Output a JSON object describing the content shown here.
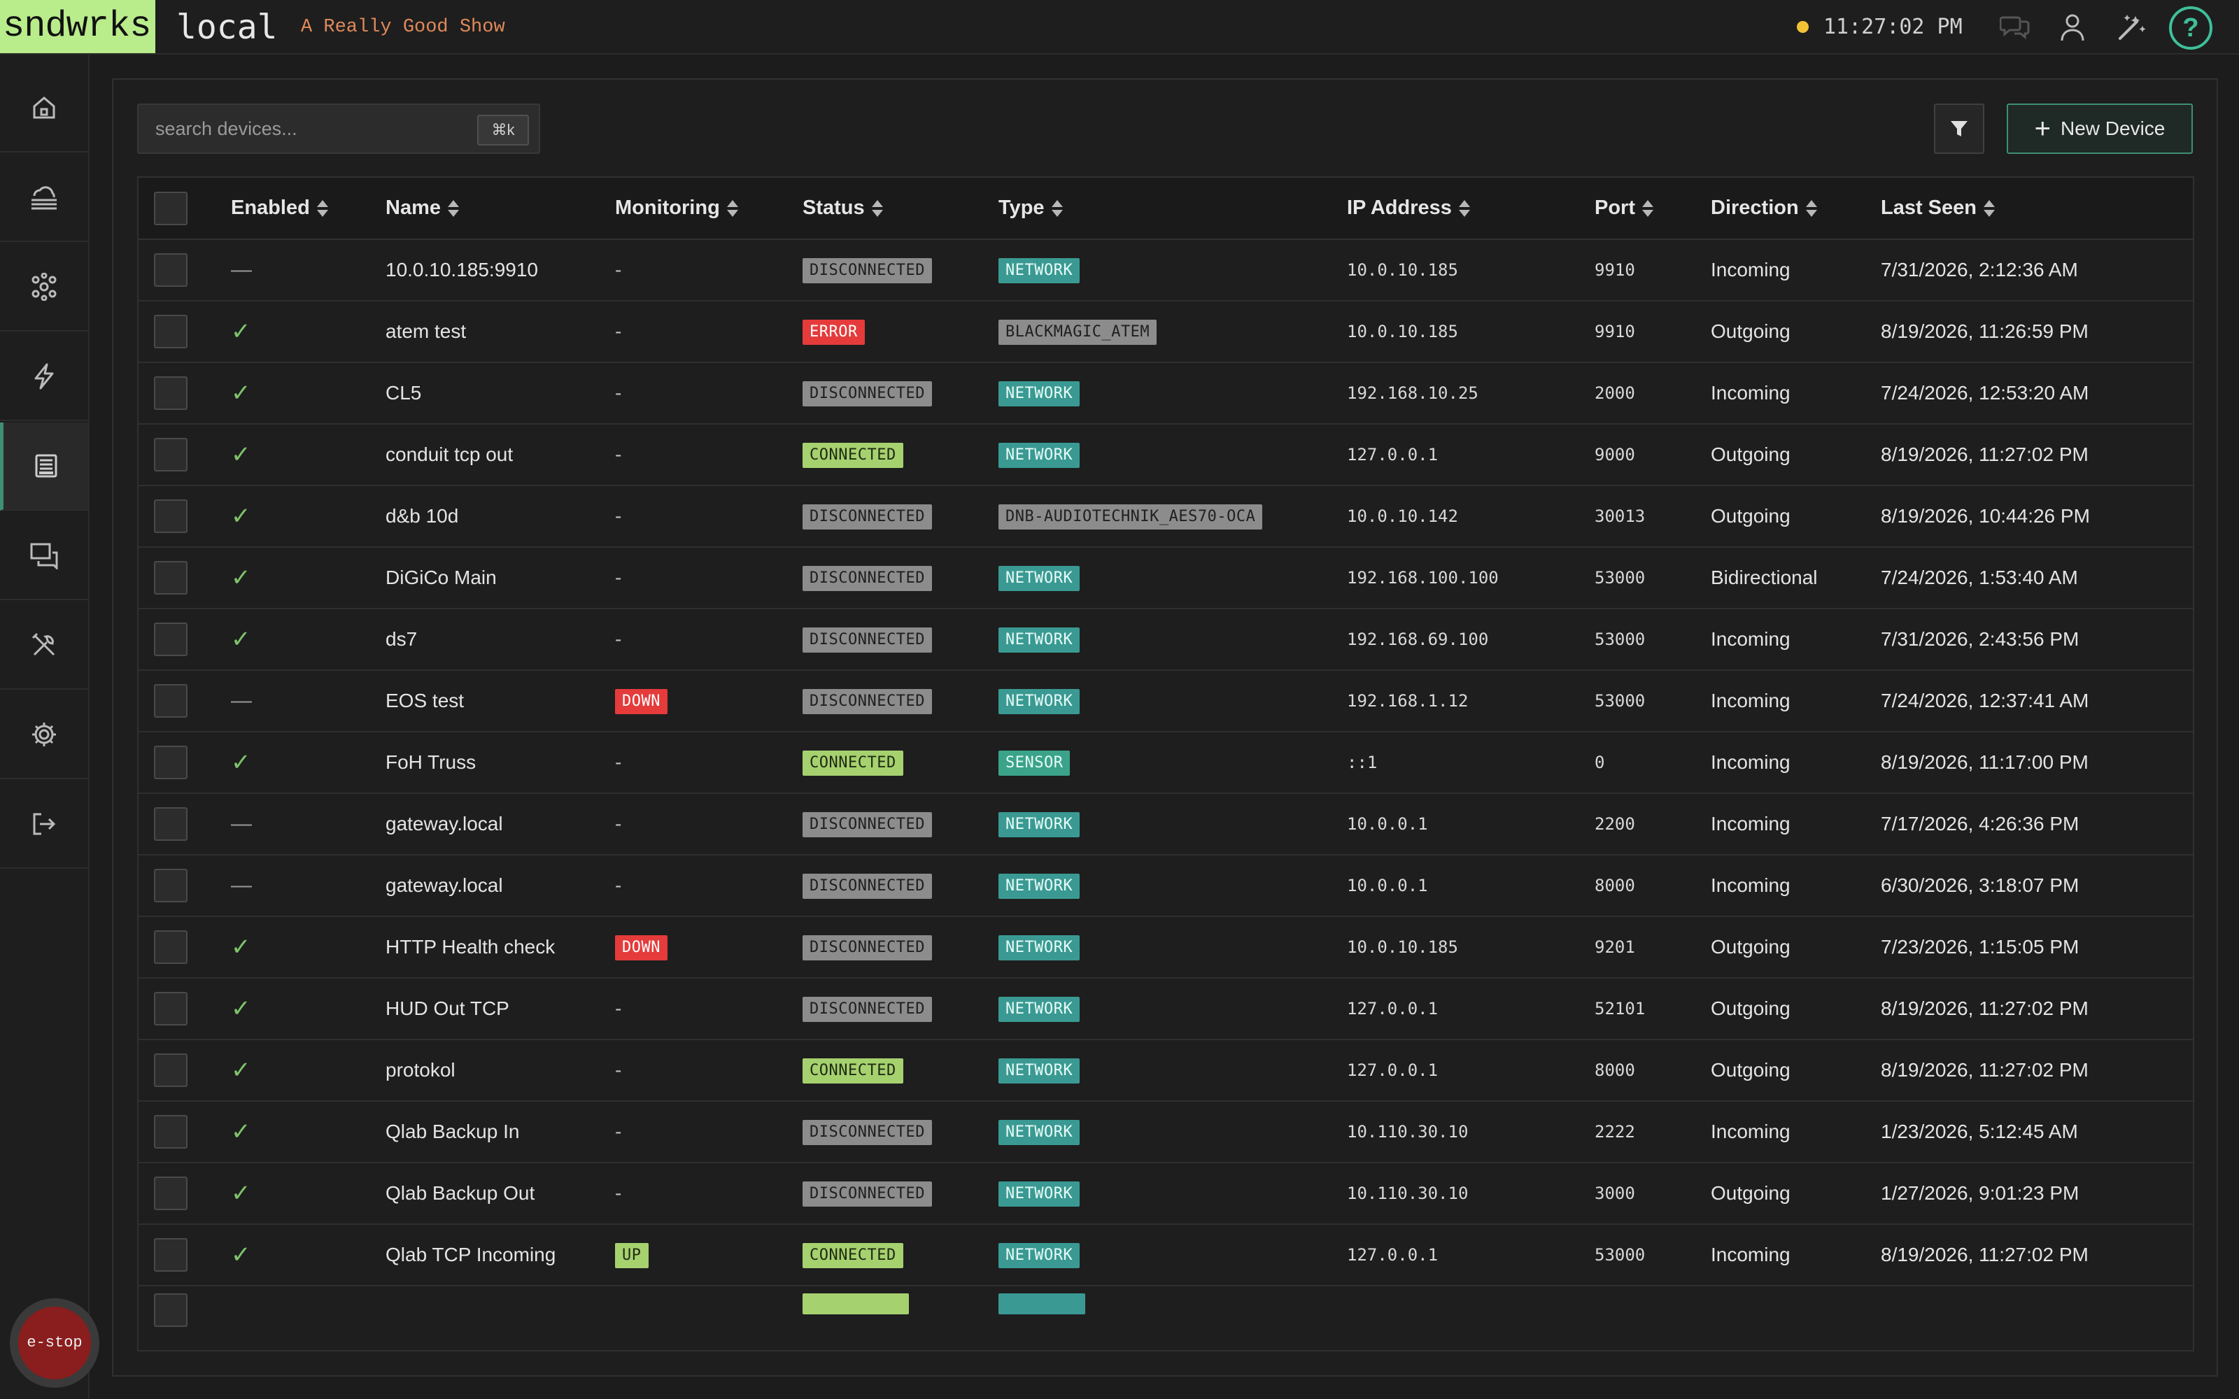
{
  "header": {
    "logo": "sndwrks",
    "instance": "local",
    "show_name": "A Really Good Show",
    "clock": "11:27:02 PM",
    "status_color": "#f2c235",
    "icons": [
      "chat-icon",
      "user-icon",
      "magic-wand-icon",
      "help-icon"
    ],
    "help_label": "?"
  },
  "sidebar": {
    "items": [
      {
        "name": "home-icon",
        "active": false
      },
      {
        "name": "cloud-stack-icon",
        "active": false
      },
      {
        "name": "network-nodes-icon",
        "active": false
      },
      {
        "name": "lightning-icon",
        "active": false
      },
      {
        "name": "devices-icon",
        "active": true
      },
      {
        "name": "messages-icon",
        "active": false
      },
      {
        "name": "tools-icon",
        "active": false
      },
      {
        "name": "settings-icon",
        "active": false
      },
      {
        "name": "logout-icon",
        "active": false
      }
    ],
    "estop_label": "e-stop"
  },
  "toolbar": {
    "search_placeholder": "search devices...",
    "shortcut": "⌘k",
    "new_device_label": "New Device"
  },
  "table": {
    "columns": [
      "Enabled",
      "Name",
      "Monitoring",
      "Status",
      "Type",
      "IP Address",
      "Port",
      "Direction",
      "Last Seen"
    ],
    "rows": [
      {
        "enabled": false,
        "name": "10.0.10.185:9910",
        "monitoring": "-",
        "status": "DISCONNECTED",
        "type": "NETWORK",
        "ip": "10.0.10.185",
        "port": "9910",
        "direction": "Incoming",
        "last_seen": "7/31/2026, 2:12:36 AM"
      },
      {
        "enabled": true,
        "name": "atem test",
        "monitoring": "-",
        "status": "ERROR",
        "type": "BLACKMAGIC_ATEM",
        "ip": "10.0.10.185",
        "port": "9910",
        "direction": "Outgoing",
        "last_seen": "8/19/2026, 11:26:59 PM"
      },
      {
        "enabled": true,
        "name": "CL5",
        "monitoring": "-",
        "status": "DISCONNECTED",
        "type": "NETWORK",
        "ip": "192.168.10.25",
        "port": "2000",
        "direction": "Incoming",
        "last_seen": "7/24/2026, 12:53:20 AM"
      },
      {
        "enabled": true,
        "name": "conduit tcp out",
        "monitoring": "-",
        "status": "CONNECTED",
        "type": "NETWORK",
        "ip": "127.0.0.1",
        "port": "9000",
        "direction": "Outgoing",
        "last_seen": "8/19/2026, 11:27:02 PM"
      },
      {
        "enabled": true,
        "name": "d&b 10d",
        "monitoring": "-",
        "status": "DISCONNECTED",
        "type": "DNB-AUDIOTECHNIK_AES70-OCA",
        "ip": "10.0.10.142",
        "port": "30013",
        "direction": "Outgoing",
        "last_seen": "8/19/2026, 10:44:26 PM"
      },
      {
        "enabled": true,
        "name": "DiGiCo Main",
        "monitoring": "-",
        "status": "DISCONNECTED",
        "type": "NETWORK",
        "ip": "192.168.100.100",
        "port": "53000",
        "direction": "Bidirectional",
        "last_seen": "7/24/2026, 1:53:40 AM"
      },
      {
        "enabled": true,
        "name": "ds7",
        "monitoring": "-",
        "status": "DISCONNECTED",
        "type": "NETWORK",
        "ip": "192.168.69.100",
        "port": "53000",
        "direction": "Incoming",
        "last_seen": "7/31/2026, 2:43:56 PM"
      },
      {
        "enabled": false,
        "name": "EOS test",
        "monitoring": "DOWN",
        "status": "DISCONNECTED",
        "type": "NETWORK",
        "ip": "192.168.1.12",
        "port": "53000",
        "direction": "Incoming",
        "last_seen": "7/24/2026, 12:37:41 AM"
      },
      {
        "enabled": true,
        "name": "FoH Truss",
        "monitoring": "-",
        "status": "CONNECTED",
        "type": "SENSOR",
        "ip": "::1",
        "port": "0",
        "direction": "Incoming",
        "last_seen": "8/19/2026, 11:17:00 PM"
      },
      {
        "enabled": false,
        "name": "gateway.local",
        "monitoring": "-",
        "status": "DISCONNECTED",
        "type": "NETWORK",
        "ip": "10.0.0.1",
        "port": "2200",
        "direction": "Incoming",
        "last_seen": "7/17/2026, 4:26:36 PM"
      },
      {
        "enabled": false,
        "name": "gateway.local",
        "monitoring": "-",
        "status": "DISCONNECTED",
        "type": "NETWORK",
        "ip": "10.0.0.1",
        "port": "8000",
        "direction": "Incoming",
        "last_seen": "6/30/2026, 3:18:07 PM"
      },
      {
        "enabled": true,
        "name": "HTTP Health check",
        "monitoring": "DOWN",
        "status": "DISCONNECTED",
        "type": "NETWORK",
        "ip": "10.0.10.185",
        "port": "9201",
        "direction": "Outgoing",
        "last_seen": "7/23/2026, 1:15:05 PM"
      },
      {
        "enabled": true,
        "name": "HUD Out TCP",
        "monitoring": "-",
        "status": "DISCONNECTED",
        "type": "NETWORK",
        "ip": "127.0.0.1",
        "port": "52101",
        "direction": "Outgoing",
        "last_seen": "8/19/2026, 11:27:02 PM"
      },
      {
        "enabled": true,
        "name": "protokol",
        "monitoring": "-",
        "status": "CONNECTED",
        "type": "NETWORK",
        "ip": "127.0.0.1",
        "port": "8000",
        "direction": "Outgoing",
        "last_seen": "8/19/2026, 11:27:02 PM"
      },
      {
        "enabled": true,
        "name": "Qlab Backup In",
        "monitoring": "-",
        "status": "DISCONNECTED",
        "type": "NETWORK",
        "ip": "10.110.30.10",
        "port": "2222",
        "direction": "Incoming",
        "last_seen": "1/23/2026, 5:12:45 AM"
      },
      {
        "enabled": true,
        "name": "Qlab Backup Out",
        "monitoring": "-",
        "status": "DISCONNECTED",
        "type": "NETWORK",
        "ip": "10.110.30.10",
        "port": "3000",
        "direction": "Outgoing",
        "last_seen": "1/27/2026, 9:01:23 PM"
      },
      {
        "enabled": true,
        "name": "Qlab TCP Incoming",
        "monitoring": "UP",
        "status": "CONNECTED",
        "type": "NETWORK",
        "ip": "127.0.0.1",
        "port": "53000",
        "direction": "Incoming",
        "last_seen": "8/19/2026, 11:27:02 PM"
      }
    ]
  },
  "colors": {
    "accent": "#3f8f72",
    "logo_bg": "#b9ec8a",
    "show_name": "#e0895a",
    "connected": "#a6d16f",
    "disconnected": "#8c8c8c",
    "error": "#e53b3b",
    "network": "#3a9a93"
  }
}
